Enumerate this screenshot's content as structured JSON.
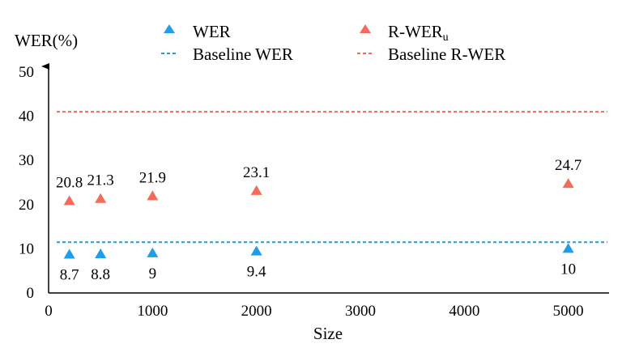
{
  "chart_data": {
    "type": "scatter",
    "title": "",
    "xlabel": "Size",
    "ylabel": "WER(%)",
    "xlim": [
      0,
      5400
    ],
    "ylim": [
      0,
      50
    ],
    "xticks": [
      0,
      1000,
      2000,
      3000,
      4000,
      5000
    ],
    "yticks": [
      0,
      10,
      20,
      30,
      40,
      50
    ],
    "x": [
      200,
      500,
      1000,
      2000,
      5000
    ],
    "series": [
      {
        "name": "WER",
        "marker": "triangle",
        "color": "#1e9de8",
        "values": [
          8.7,
          8.8,
          9,
          9.4,
          10
        ],
        "labels": [
          "8.7",
          "8.8",
          "9",
          "9.4",
          "10"
        ],
        "label_position": "below"
      },
      {
        "name": "R-WER",
        "subscript": "u",
        "marker": "triangle",
        "color": "#f26b5b",
        "values": [
          20.8,
          21.3,
          21.9,
          23.1,
          24.7
        ],
        "labels": [
          "20.8",
          "21.3",
          "21.9",
          "23.1",
          "24.7"
        ],
        "label_position": "above"
      }
    ],
    "reference_lines": [
      {
        "name": "Baseline WER",
        "value": 11.5,
        "color": "#1e9de8",
        "style": "dashed"
      },
      {
        "name": "Baseline R-WER",
        "value": 41,
        "color": "#f26b5b",
        "style": "dashed"
      }
    ],
    "legend": {
      "placement": "top",
      "entries": [
        {
          "kind": "marker",
          "label": "WER",
          "color": "#1e9de8"
        },
        {
          "kind": "marker",
          "label": "R-WER",
          "subscript": "u",
          "color": "#f26b5b"
        },
        {
          "kind": "line",
          "label": "Baseline WER",
          "color": "#1e9de8"
        },
        {
          "kind": "line",
          "label": "Baseline R-WER",
          "color": "#f26b5b"
        }
      ]
    },
    "grid": false
  }
}
